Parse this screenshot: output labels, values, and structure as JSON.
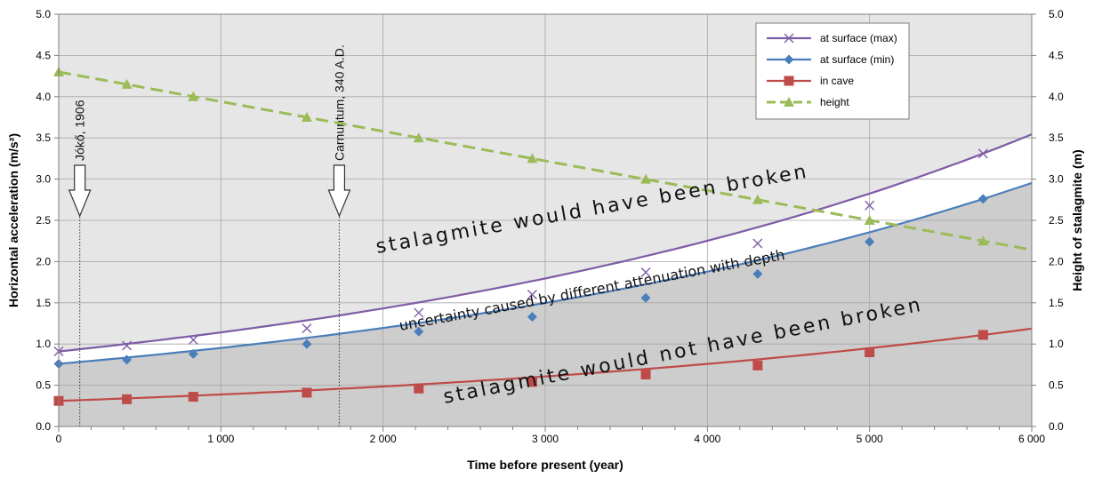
{
  "chart_data": {
    "type": "line",
    "xlabel": "Time before present (year)",
    "ylabel": "Horizontal acceleration (m/s²)",
    "y2label": "Height of stalagmite (m)",
    "xlim": [
      0,
      6000
    ],
    "ylim": [
      0,
      5
    ],
    "y2lim": [
      0,
      5
    ],
    "x_ticks": [
      0,
      1000,
      2000,
      3000,
      4000,
      5000,
      6000
    ],
    "x_tick_labels": [
      "0",
      "1 000",
      "2 000",
      "3 000",
      "4 000",
      "5 000",
      "6 000"
    ],
    "y_ticks": [
      0,
      0.5,
      1,
      1.5,
      2,
      2.5,
      3,
      3.5,
      4,
      4.5,
      5
    ],
    "y_tick_labels": [
      "0.0",
      "0.5",
      "1.0",
      "1.5",
      "2.0",
      "2.5",
      "3.0",
      "3.5",
      "4.0",
      "4.5",
      "5.0"
    ],
    "grid": true,
    "legend_position": "top-right",
    "series": [
      {
        "name": "at surface (max)",
        "axis": "left",
        "color": "#7e5ca6",
        "marker": "x",
        "line": "solid",
        "x": [
          0,
          420,
          830,
          1530,
          2220,
          2920,
          3620,
          4310,
          5000,
          5700
        ],
        "y": [
          0.91,
          0.98,
          1.05,
          1.19,
          1.38,
          1.6,
          1.87,
          2.22,
          2.68,
          3.31
        ]
      },
      {
        "name": "at surface (min)",
        "axis": "left",
        "color": "#4a7ebb",
        "marker": "diamond",
        "line": "solid",
        "x": [
          0,
          420,
          830,
          1530,
          2220,
          2920,
          3620,
          4310,
          5000,
          5700
        ],
        "y": [
          0.76,
          0.81,
          0.88,
          1.0,
          1.15,
          1.33,
          1.56,
          1.85,
          2.24,
          2.76
        ]
      },
      {
        "name": "in cave",
        "axis": "left",
        "color": "#be4b48",
        "marker": "square",
        "line": "solid",
        "x": [
          0,
          420,
          830,
          1530,
          2220,
          2920,
          3620,
          4310,
          5000,
          5700
        ],
        "y": [
          0.31,
          0.33,
          0.36,
          0.41,
          0.46,
          0.54,
          0.63,
          0.74,
          0.9,
          1.11
        ]
      },
      {
        "name": "height",
        "axis": "right",
        "color": "#9bbb59",
        "marker": "triangle",
        "line": "dashed",
        "x": [
          0,
          420,
          830,
          1530,
          2220,
          2920,
          3620,
          4310,
          5000,
          5700
        ],
        "y": [
          4.3,
          4.15,
          4.0,
          3.75,
          3.5,
          3.25,
          3.0,
          2.75,
          2.5,
          2.25
        ]
      }
    ],
    "events": [
      {
        "label": "Jókő, 1906",
        "x": 130
      },
      {
        "label": "Carnuntum, 340 A.D.",
        "x": 1730
      }
    ],
    "annotations": {
      "broken": "stalagmite would have been broken",
      "uncertainty": "uncertainty caused by different attenuation with depth",
      "not_broken": "stalagmite would not have been broken"
    },
    "colors": {
      "upper_region": "#e6e6e6",
      "lower_region": "#cdcdcd",
      "band": "#ffffff"
    }
  }
}
